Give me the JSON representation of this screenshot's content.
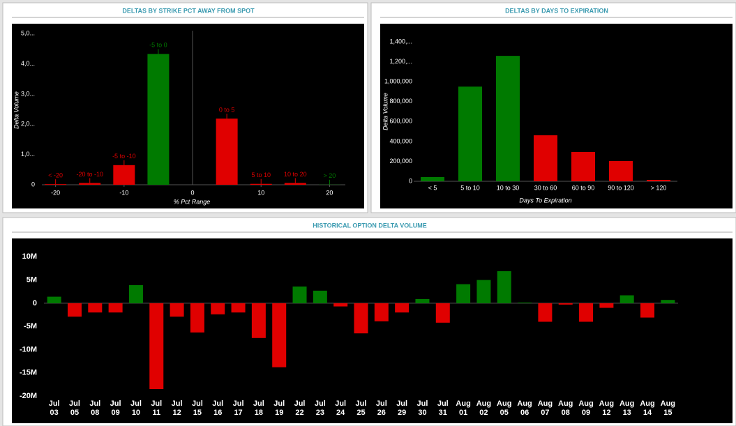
{
  "chart_data": [
    {
      "type": "bar",
      "title": "DELTAS BY STRIKE PCT AWAY FROM SPOT",
      "x_label": "% Pct Range",
      "y_label": "Delta Volume",
      "x": [
        -20,
        -15,
        -10,
        -5,
        5,
        10,
        15,
        20
      ],
      "bar_labels": [
        "< -20",
        "-20 to -10",
        "-5 to -10",
        "-5 to 0",
        "0 to 5",
        "5 to 10",
        "10 to 20",
        "> 20"
      ],
      "values": [
        20000,
        60000,
        650000,
        4330000,
        2190000,
        30000,
        60000,
        5000
      ],
      "colors": [
        "#e00000",
        "#e00000",
        "#e00000",
        "#007a00",
        "#e00000",
        "#e00000",
        "#e00000",
        "#007a00"
      ],
      "xlim": [
        -22,
        22.3
      ],
      "xticks": [
        -20,
        -10,
        0,
        10,
        20
      ],
      "ylim": [
        0,
        5100000
      ],
      "yticks": [
        0,
        {
          "value": 1000000,
          "label": "1,0..."
        },
        {
          "value": 2000000,
          "label": "2,0..."
        },
        {
          "value": 3000000,
          "label": "3,0..."
        },
        {
          "value": 4000000,
          "label": "4,0..."
        },
        {
          "value": 5000000,
          "label": "5,0..."
        }
      ]
    },
    {
      "type": "bar",
      "title": "DELTAS BY DAYS TO EXPIRATION",
      "x_label": "Days To Expiration",
      "y_label": "Delta Volume",
      "categories": [
        "< 5",
        "5 to 10",
        "10 to 30",
        "30 to 60",
        "60 to 90",
        "90 to 120",
        "> 120"
      ],
      "values": [
        42000,
        951000,
        1260000,
        462000,
        294000,
        203000,
        14000
      ],
      "colors": [
        "#007a00",
        "#007a00",
        "#007a00",
        "#e00000",
        "#e00000",
        "#e00000",
        "#e00000"
      ],
      "ylim": [
        0,
        1450000
      ],
      "yticks": [
        0,
        {
          "value": 200000,
          "label": "200,000"
        },
        {
          "value": 400000,
          "label": "400,000"
        },
        {
          "value": 600000,
          "label": "600,000"
        },
        {
          "value": 800000,
          "label": "800,000"
        },
        {
          "value": 1000000,
          "label": "1,000,000"
        },
        {
          "value": 1200000,
          "label": "1,200,..."
        },
        {
          "value": 1400000,
          "label": "1,400,..."
        }
      ]
    },
    {
      "type": "bar",
      "title": "HISTORICAL OPTION DELTA VOLUME",
      "categories": [
        "Jul 03",
        "Jul 05",
        "Jul 08",
        "Jul 09",
        "Jul 10",
        "Jul 11",
        "Jul 12",
        "Jul 15",
        "Jul 16",
        "Jul 17",
        "Jul 18",
        "Jul 19",
        "Jul 22",
        "Jul 23",
        "Jul 24",
        "Jul 25",
        "Jul 26",
        "Jul 29",
        "Jul 30",
        "Jul 31",
        "Aug 01",
        "Aug 02",
        "Aug 05",
        "Aug 06",
        "Aug 07",
        "Aug 08",
        "Aug 09",
        "Aug 12",
        "Aug 13",
        "Aug 14",
        "Aug 15"
      ],
      "values": [
        1400000,
        -2900000,
        -2000000,
        -2000000,
        3900000,
        -18500000,
        -2900000,
        -6300000,
        -2400000,
        -2000000,
        -7500000,
        -13800000,
        3600000,
        2700000,
        -700000,
        -6500000,
        -3900000,
        -2000000,
        900000,
        -4200000,
        4100000,
        5000000,
        6900000,
        150000,
        -4000000,
        -300000,
        -4000000,
        -1000000,
        1700000,
        -3100000,
        700000
      ],
      "colors": {
        "positive": "#007a00",
        "negative": "#e00000"
      },
      "ylim": [
        -20300000,
        12000000
      ],
      "yticks": [
        {
          "value": -20000000,
          "label": "-20M"
        },
        {
          "value": -15000000,
          "label": "-15M"
        },
        {
          "value": -10000000,
          "label": "-10M"
        },
        {
          "value": -5000000,
          "label": "-5M"
        },
        0,
        {
          "value": 5000000,
          "label": "5M"
        },
        {
          "value": 10000000,
          "label": "10M"
        }
      ]
    }
  ]
}
